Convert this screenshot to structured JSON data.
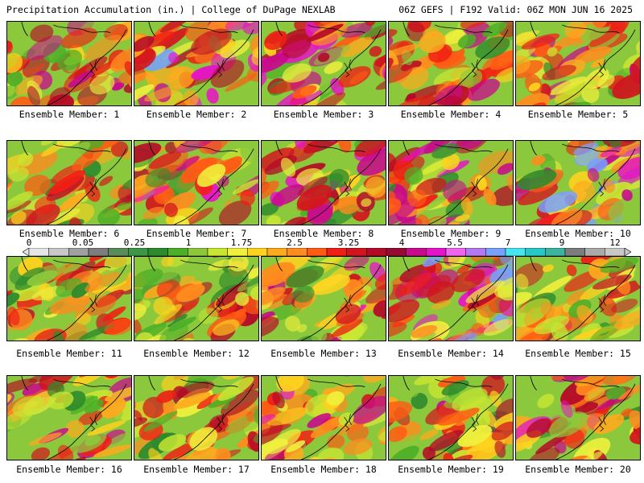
{
  "header": {
    "left": "Precipitation Accumulation (in.) | College of DuPage NEXLAB",
    "right": "06Z GEFS | F192 Valid: 06Z MON JUN 16 2025"
  },
  "colors": {
    "scale": [
      "#e6e6e6",
      "#c8c8c8",
      "#a0a0a0",
      "#7d7d7d",
      "#5a8c5a",
      "#3c9646",
      "#2d8a2d",
      "#4caf28",
      "#8cc83c",
      "#c8e632",
      "#f0f03c",
      "#ffd21e",
      "#ffaa1e",
      "#ff8c1e",
      "#ff5a14",
      "#f01e14",
      "#d2141e",
      "#b40a28",
      "#960a32",
      "#c80a8c",
      "#e614c8",
      "#f064f0",
      "#b478f0",
      "#78a0ff",
      "#46e6f0",
      "#28c8c8",
      "#3cb4a0",
      "#7d7d7d",
      "#aaaaaa",
      "#c8c8c8"
    ]
  },
  "colorbar": {
    "ticks": [
      "0",
      "0.05",
      "0.25",
      "1",
      "1.75",
      "2.5",
      "3.25",
      "4",
      "5.5",
      "7",
      "9",
      "12"
    ]
  },
  "members": [
    {
      "label": "Ensemble Member: 1",
      "intensity": 0.55
    },
    {
      "label": "Ensemble Member: 2",
      "intensity": 0.75
    },
    {
      "label": "Ensemble Member: 3",
      "intensity": 0.7
    },
    {
      "label": "Ensemble Member: 4",
      "intensity": 0.6
    },
    {
      "label": "Ensemble Member: 5",
      "intensity": 0.55
    },
    {
      "label": "Ensemble Member: 6",
      "intensity": 0.45
    },
    {
      "label": "Ensemble Member: 7",
      "intensity": 0.65
    },
    {
      "label": "Ensemble Member: 8",
      "intensity": 0.7
    },
    {
      "label": "Ensemble Member: 9",
      "intensity": 0.65
    },
    {
      "label": "Ensemble Member: 10",
      "intensity": 0.8
    },
    {
      "label": "Ensemble Member: 11",
      "intensity": 0.4
    },
    {
      "label": "Ensemble Member: 12",
      "intensity": 0.4
    },
    {
      "label": "Ensemble Member: 13",
      "intensity": 0.6
    },
    {
      "label": "Ensemble Member: 14",
      "intensity": 0.75
    },
    {
      "label": "Ensemble Member: 15",
      "intensity": 0.5
    },
    {
      "label": "Ensemble Member: 16",
      "intensity": 0.55
    },
    {
      "label": "Ensemble Member: 17",
      "intensity": 0.45
    },
    {
      "label": "Ensemble Member: 18",
      "intensity": 0.6
    },
    {
      "label": "Ensemble Member: 19",
      "intensity": 0.5
    },
    {
      "label": "Ensemble Member: 20",
      "intensity": 0.65
    }
  ]
}
